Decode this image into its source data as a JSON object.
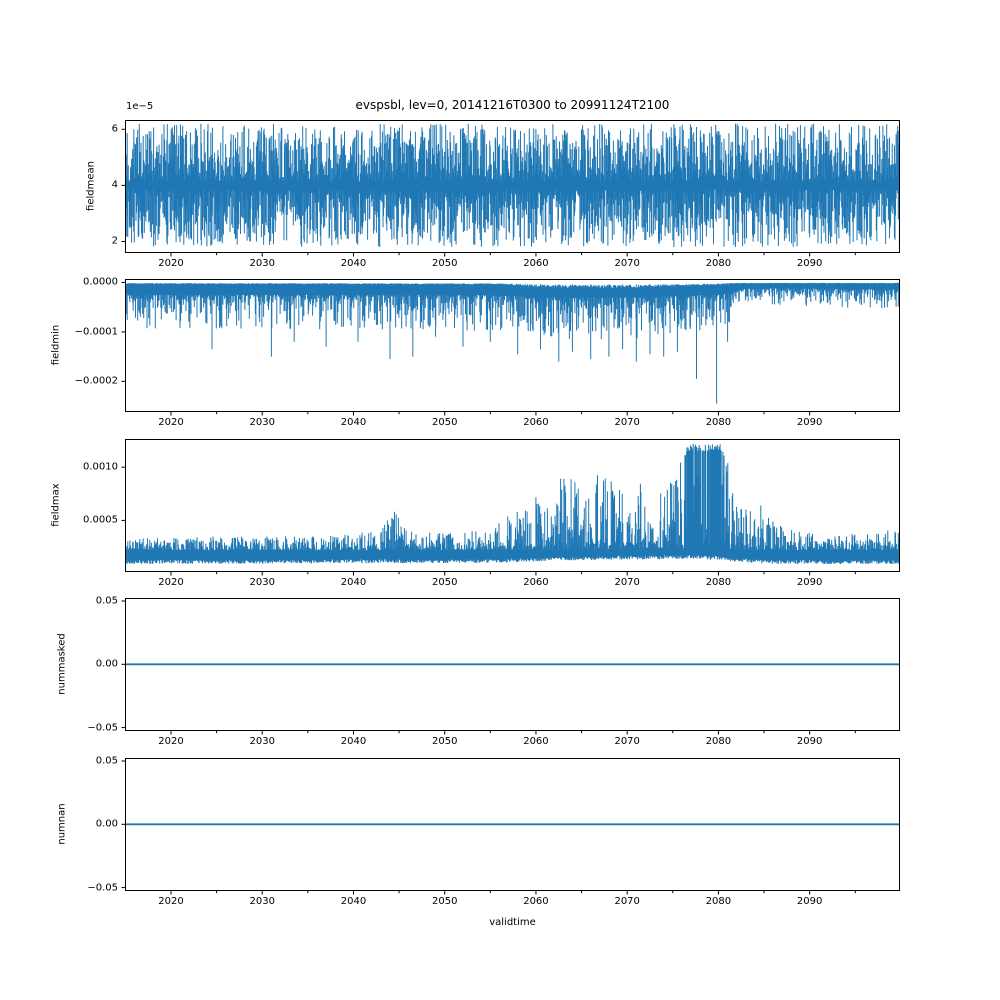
{
  "figure": {
    "title": "evspsbl, lev=0, 20141216T0300 to 20991124T2100",
    "xlabel": "validtime",
    "background_color": "#ffffff",
    "line_color": "#1f77b4",
    "axis_color": "#000000"
  },
  "chart_data": {
    "type": "line",
    "title": "evspsbl, lev=0, 20141216T0300 to 20991124T2100",
    "xlabel": "validtime",
    "variable": "evspsbl",
    "level": "lev=0",
    "time_range": {
      "start": "20141216T0300",
      "end": "20991124T2100"
    },
    "x_axis": {
      "xlim": [
        2014.96,
        2099.9
      ],
      "major_ticks": [
        2020,
        2030,
        2040,
        2050,
        2060,
        2070,
        2080,
        2090
      ],
      "minor_ticks": [
        2025,
        2035,
        2045,
        2055,
        2065,
        2075,
        2085,
        2095
      ],
      "grid": false
    },
    "subplots": [
      {
        "ylabel": "fieldmean",
        "offset_text": "1e−5",
        "kind": "band",
        "ylim": [
          1.59e-05,
          6.33e-05
        ],
        "yticks": {
          "values": [
            2e-05,
            4e-05,
            6e-05
          ],
          "labels": [
            "2",
            "4",
            "6"
          ]
        },
        "band_hi": [
          [
            2014.96,
            6.2e-05
          ],
          [
            2099.9,
            6.2e-05
          ]
        ],
        "band_lo": [
          [
            2014.96,
            1.8e-05
          ],
          [
            2099.9,
            1.8e-05
          ]
        ],
        "band_center": 4e-05,
        "seed": 7
      },
      {
        "ylabel": "fieldmin",
        "kind": "spikes-down",
        "ylim": [
          -0.000262,
          7e-06
        ],
        "yticks": {
          "values": [
            0,
            -0.0001,
            -0.0002
          ],
          "labels": [
            "0.0000",
            "−0.0001",
            "−0.0002"
          ]
        },
        "band_top": [
          [
            2014.96,
            3e-06
          ],
          [
            2056,
            4e-06
          ],
          [
            2060,
            1e-05
          ],
          [
            2066,
            1.2e-05
          ],
          [
            2072,
            1.1e-05
          ],
          [
            2076,
            8e-06
          ],
          [
            2080,
            5e-06
          ],
          [
            2082,
            2e-06
          ],
          [
            2099.9,
            2e-06
          ]
        ],
        "spike_env": [
          [
            2014.96,
            9.5e-05
          ],
          [
            2050,
            9.5e-05
          ],
          [
            2056,
            0.0001
          ],
          [
            2060,
            0.000115
          ],
          [
            2070,
            0.000115
          ],
          [
            2076,
            0.000105
          ],
          [
            2080,
            9.5e-05
          ],
          [
            2081.5,
            8e-05
          ],
          [
            2082.5,
            5e-05
          ],
          [
            2086,
            4.5e-05
          ],
          [
            2090,
            4.8e-05
          ],
          [
            2095,
            5.2e-05
          ],
          [
            2099.9,
            5.5e-05
          ]
        ],
        "deep_spikes": [
          [
            2024.5,
            -0.000135
          ],
          [
            2031,
            -0.00015
          ],
          [
            2033.5,
            -0.00012
          ],
          [
            2037,
            -0.00013
          ],
          [
            2040.5,
            -0.00012
          ],
          [
            2044,
            -0.000155
          ],
          [
            2046.5,
            -0.00015
          ],
          [
            2049,
            -0.00011
          ],
          [
            2052,
            -0.00013
          ],
          [
            2055,
            -0.00012
          ],
          [
            2058,
            -0.000145
          ],
          [
            2060.5,
            -0.000135
          ],
          [
            2062.5,
            -0.00016
          ],
          [
            2064,
            -0.00014
          ],
          [
            2066,
            -0.000155
          ],
          [
            2068,
            -0.00015
          ],
          [
            2069.5,
            -0.000135
          ],
          [
            2071,
            -0.00016
          ],
          [
            2072.5,
            -0.000145
          ],
          [
            2074,
            -0.00015
          ],
          [
            2075.5,
            -0.00014
          ],
          [
            2077.6,
            -0.000195
          ],
          [
            2079.8,
            -0.000245
          ],
          [
            2081,
            -0.00012
          ]
        ],
        "seed": 13
      },
      {
        "ylabel": "fieldmax",
        "kind": "spikes-up",
        "ylim": [
          1.5e-05,
          0.001265
        ],
        "yticks": {
          "values": [
            0.0005,
            0.001
          ],
          "labels": [
            "0.0005",
            "0.0010"
          ]
        },
        "base_lo": [
          [
            2014.96,
            9e-05
          ],
          [
            2055,
            0.0001
          ],
          [
            2062,
            0.00012
          ],
          [
            2078,
            0.00014
          ],
          [
            2082,
            0.00011
          ],
          [
            2086,
            9e-05
          ],
          [
            2099.9,
            9e-05
          ]
        ],
        "peak_env": [
          [
            2014.96,
            0.00033
          ],
          [
            2025,
            0.00035
          ],
          [
            2035,
            0.00036
          ],
          [
            2040,
            0.00038
          ],
          [
            2043,
            0.0004
          ],
          [
            2044.5,
            0.00062
          ],
          [
            2046,
            0.0004
          ],
          [
            2050,
            0.00038
          ],
          [
            2054,
            0.00042
          ],
          [
            2056,
            0.0005
          ],
          [
            2058,
            0.00064
          ],
          [
            2060,
            0.00078
          ],
          [
            2061.5,
            0.00062
          ],
          [
            2063,
            0.00096
          ],
          [
            2064.2,
            0.001
          ],
          [
            2065.2,
            0.00072
          ],
          [
            2066.5,
            0.00102
          ],
          [
            2067.5,
            0.00106
          ],
          [
            2068.5,
            0.00096
          ],
          [
            2070,
            0.00065
          ],
          [
            2071.5,
            0.00086
          ],
          [
            2073,
            0.0007
          ],
          [
            2074.5,
            0.00086
          ],
          [
            2075.8,
            0.00105
          ],
          [
            2076.6,
            0.00122
          ],
          [
            2080.4,
            0.00122
          ],
          [
            2081.5,
            0.00092
          ],
          [
            2082.5,
            0.00078
          ],
          [
            2083.5,
            0.00062
          ],
          [
            2084.5,
            0.00072
          ],
          [
            2085.5,
            0.00055
          ],
          [
            2086.5,
            0.00048
          ],
          [
            2088,
            0.00042
          ],
          [
            2090,
            0.0004
          ],
          [
            2093,
            0.00037
          ],
          [
            2096,
            0.00038
          ],
          [
            2099.9,
            0.00042
          ]
        ],
        "plateau_threshold": 0.00115,
        "seed": 99
      },
      {
        "ylabel": "nummasked",
        "kind": "flat",
        "flat_value": 0,
        "ylim": [
          -0.0527,
          0.0524
        ],
        "yticks": {
          "values": [
            0.05,
            0,
            -0.05
          ],
          "labels": [
            "0.05",
            "0.00",
            "−0.05"
          ]
        }
      },
      {
        "ylabel": "numnan",
        "kind": "flat",
        "flat_value": 0,
        "ylim": [
          -0.0527,
          0.0524
        ],
        "yticks": {
          "values": [
            0.05,
            0,
            -0.05
          ],
          "labels": [
            "0.05",
            "0.00",
            "−0.05"
          ]
        }
      }
    ]
  }
}
